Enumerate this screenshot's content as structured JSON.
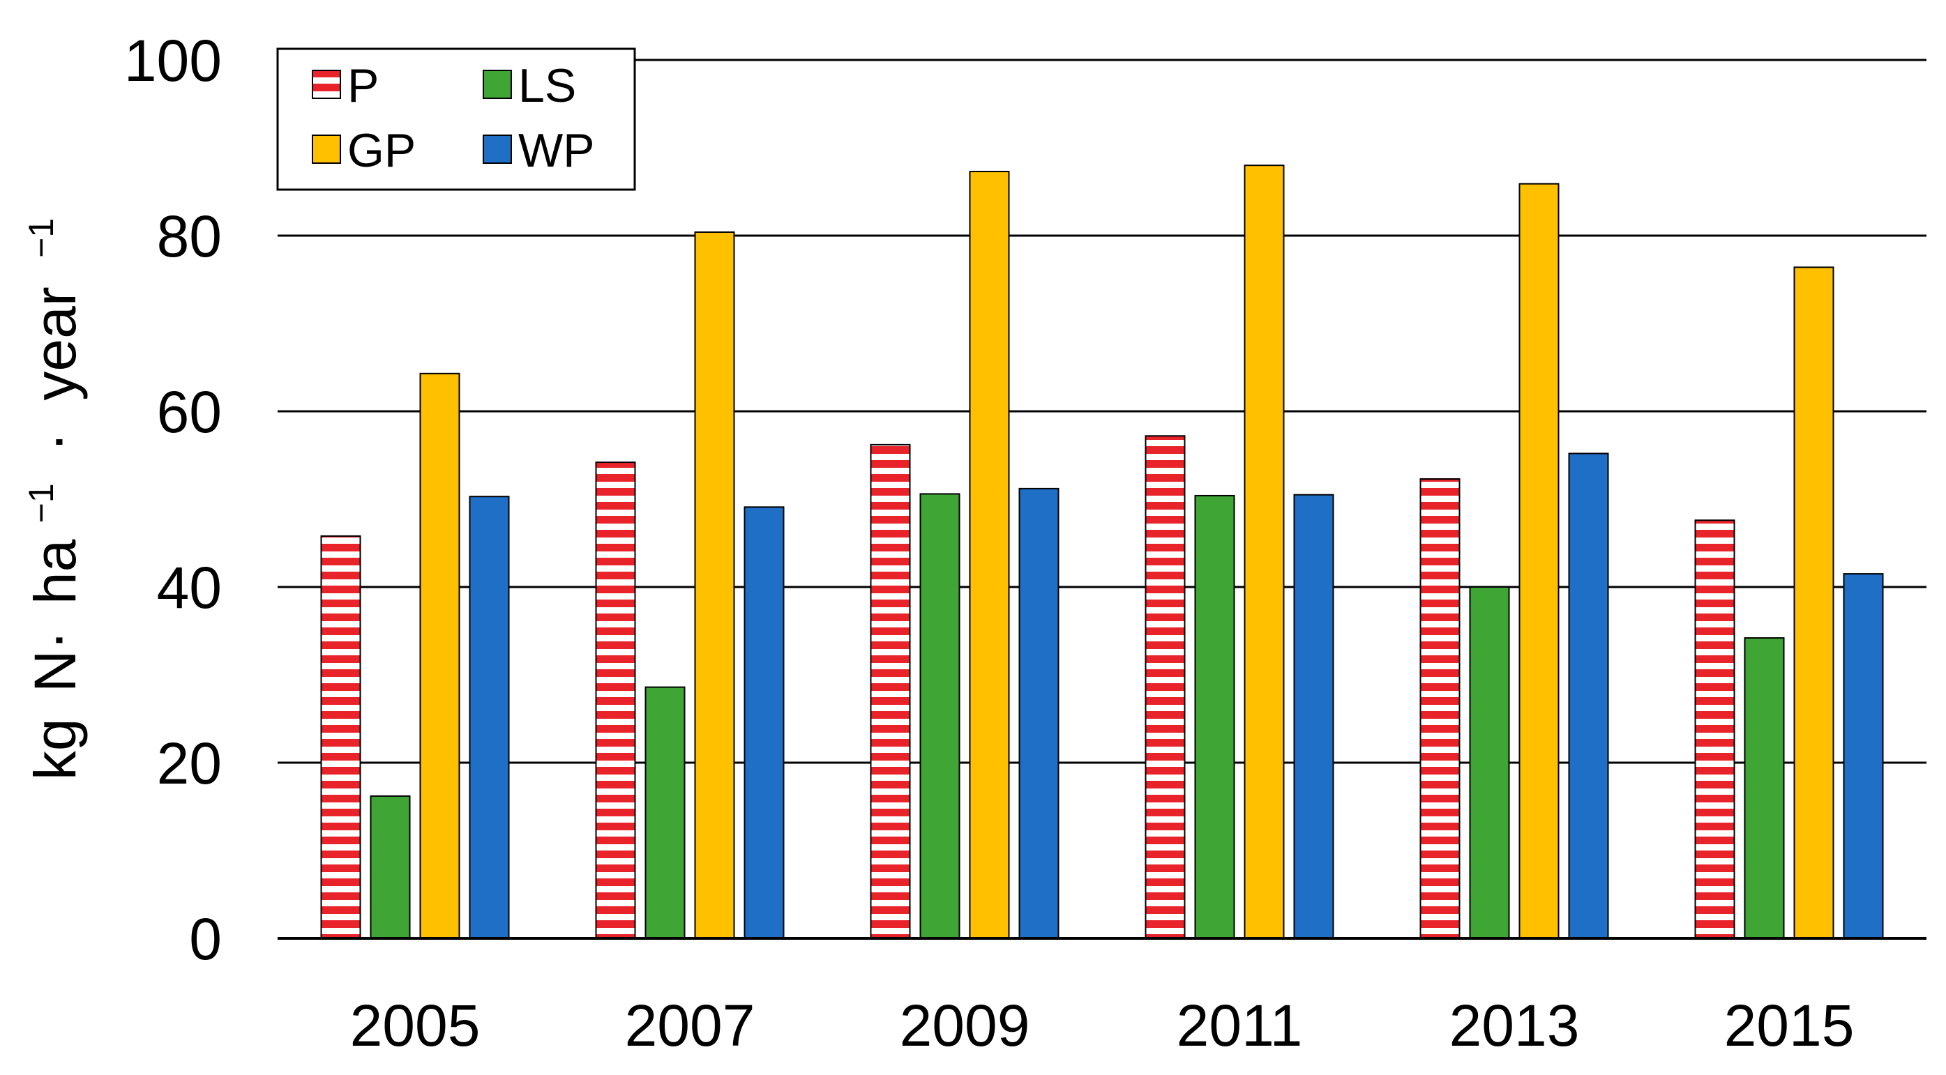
{
  "chart_data": {
    "type": "bar",
    "title": "",
    "xlabel": "",
    "ylabel": {
      "kg": "kg",
      "n": "N·",
      "ha": "ha",
      "ha_exp": "−1",
      "dot": "·",
      "year": "year",
      "year_exp": "−1"
    },
    "categories": [
      "2005",
      "2007",
      "2009",
      "2011",
      "2013",
      "2015"
    ],
    "ylim": [
      0,
      100
    ],
    "yticks": [
      0,
      20,
      40,
      60,
      80,
      100
    ],
    "grid": true,
    "legend_position": "top-left",
    "series": [
      {
        "name": "P",
        "color": "#e8232a",
        "pattern": "horizontal-stripes",
        "values": [
          45.8,
          54.2,
          56.2,
          57.2,
          52.3,
          47.6
        ]
      },
      {
        "name": "LS",
        "color": "#3fa535",
        "pattern": "solid",
        "values": [
          16.2,
          28.6,
          50.6,
          50.4,
          40.0,
          34.2
        ]
      },
      {
        "name": "GP",
        "color": "#ffc000",
        "pattern": "solid",
        "values": [
          64.3,
          80.4,
          87.3,
          88.0,
          85.9,
          76.4
        ]
      },
      {
        "name": "WP",
        "color": "#1f6fc6",
        "pattern": "solid",
        "values": [
          50.3,
          49.1,
          51.2,
          50.5,
          55.2,
          41.5
        ]
      }
    ]
  }
}
